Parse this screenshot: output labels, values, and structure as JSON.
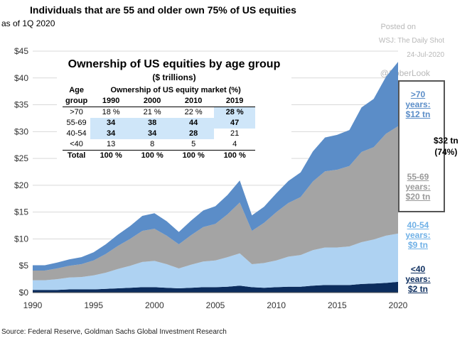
{
  "header": {
    "title": "Individuals that are 55 and older own 75% of US equities",
    "subtitle": "as of 1Q 2020"
  },
  "watermark": {
    "line1": "Posted on",
    "line2": "WSJ: The Daily Shot",
    "line3": "24-Jul-2020",
    "handle": "@SoberLook"
  },
  "source": "Source: Federal Reserve, Goldman Sachs Global Investment Research",
  "colors": {
    "lt40": "#0c2d5e",
    "age40_54": "#aed2f2",
    "age55_69": "#a4a4a4",
    "gt70": "#5b8dc8",
    "lbl_gt70": "#5b8dc8",
    "lbl_55_69": "#9a9a9a",
    "lbl_40_54": "#6fb0e6",
    "lbl_lt40": "#0c2d5e"
  },
  "table": {
    "title": "Ownership of US equities by age group",
    "unit": "($ trillions)",
    "age_header_1": "Age",
    "age_header_2": "group",
    "span_header": "Ownership of US equity market (%)",
    "years": [
      "1990",
      "2000",
      "2010",
      "2019"
    ],
    "rows": [
      {
        "group": ">70",
        "values": [
          "18 %",
          "21 %",
          "22 %",
          "28 %"
        ]
      },
      {
        "group": "55-69",
        "values": [
          "34",
          "38",
          "44",
          "47"
        ]
      },
      {
        "group": "40-54",
        "values": [
          "34",
          "34",
          "28",
          "21"
        ]
      },
      {
        "group": "<40",
        "values": [
          "13",
          "8",
          "5",
          "4"
        ]
      },
      {
        "group": "Total",
        "values": [
          "100 %",
          "100 %",
          "100 %",
          "100 %"
        ]
      }
    ]
  },
  "labels": {
    "gt70": {
      "l1": ">70",
      "l2": "years:",
      "l3": "$12 tn"
    },
    "age55_69": {
      "l1": "55-69",
      "l2": "years:",
      "l3": "$20 tn"
    },
    "age40_54": {
      "l1": "40-54",
      "l2": "years:",
      "l3": "$9 tn"
    },
    "lt40": {
      "l1": "<40",
      "l2": "years:",
      "l3": "$2 tn"
    },
    "total": {
      "l1": "$32 tn",
      "l2": "(74%)"
    }
  },
  "chart_data": {
    "type": "area",
    "stacked": true,
    "ylim": [
      0,
      45
    ],
    "yticks": [
      "$0",
      "$5",
      "$10",
      "$15",
      "$20",
      "$25",
      "$30",
      "$35",
      "$40",
      "$45"
    ],
    "xticks": [
      "1990",
      "1995",
      "2000",
      "2005",
      "2010",
      "2015",
      "2020"
    ],
    "xlim": [
      1990,
      2020
    ],
    "grid": true,
    "x": [
      1990,
      1991,
      1992,
      1993,
      1994,
      1995,
      1996,
      1997,
      1998,
      1999,
      2000,
      2001,
      2002,
      2003,
      2004,
      2005,
      2006,
      2007,
      2008,
      2009,
      2010,
      2011,
      2012,
      2013,
      2014,
      2015,
      2016,
      2017,
      2018,
      2019,
      2020
    ],
    "series": [
      {
        "name": "<40",
        "values": [
          0.5,
          0.5,
          0.5,
          0.6,
          0.6,
          0.6,
          0.7,
          0.8,
          0.9,
          1.0,
          1.0,
          0.9,
          0.8,
          0.9,
          1.0,
          1.0,
          1.1,
          1.3,
          1.0,
          0.9,
          1.0,
          1.1,
          1.1,
          1.3,
          1.4,
          1.4,
          1.4,
          1.6,
          1.7,
          1.8,
          2.0
        ]
      },
      {
        "name": "40-54",
        "values": [
          1.8,
          1.8,
          2.0,
          2.2,
          2.3,
          2.6,
          3.0,
          3.6,
          4.1,
          4.7,
          4.9,
          4.4,
          3.7,
          4.3,
          4.8,
          5.0,
          5.5,
          6.0,
          4.3,
          4.6,
          5.0,
          5.6,
          5.9,
          6.6,
          7.0,
          7.0,
          7.2,
          7.8,
          8.2,
          8.8,
          9.0
        ]
      },
      {
        "name": "55-69",
        "values": [
          1.8,
          1.8,
          2.0,
          2.2,
          2.4,
          2.8,
          3.5,
          4.3,
          5.0,
          5.8,
          6.0,
          5.3,
          4.5,
          5.5,
          6.4,
          6.8,
          8.0,
          9.5,
          6.2,
          7.5,
          9.0,
          10.0,
          10.8,
          12.8,
          14.2,
          14.5,
          15.0,
          16.8,
          17.2,
          19.0,
          20.0
        ]
      },
      {
        "name": ">70",
        "values": [
          1.0,
          1.0,
          1.1,
          1.2,
          1.3,
          1.5,
          1.8,
          2.1,
          2.4,
          2.8,
          2.9,
          2.7,
          2.3,
          2.7,
          3.1,
          3.3,
          3.6,
          4.1,
          2.9,
          3.0,
          3.5,
          4.1,
          4.6,
          5.6,
          6.3,
          6.5,
          6.7,
          8.3,
          9.0,
          10.6,
          12.0
        ]
      }
    ]
  }
}
